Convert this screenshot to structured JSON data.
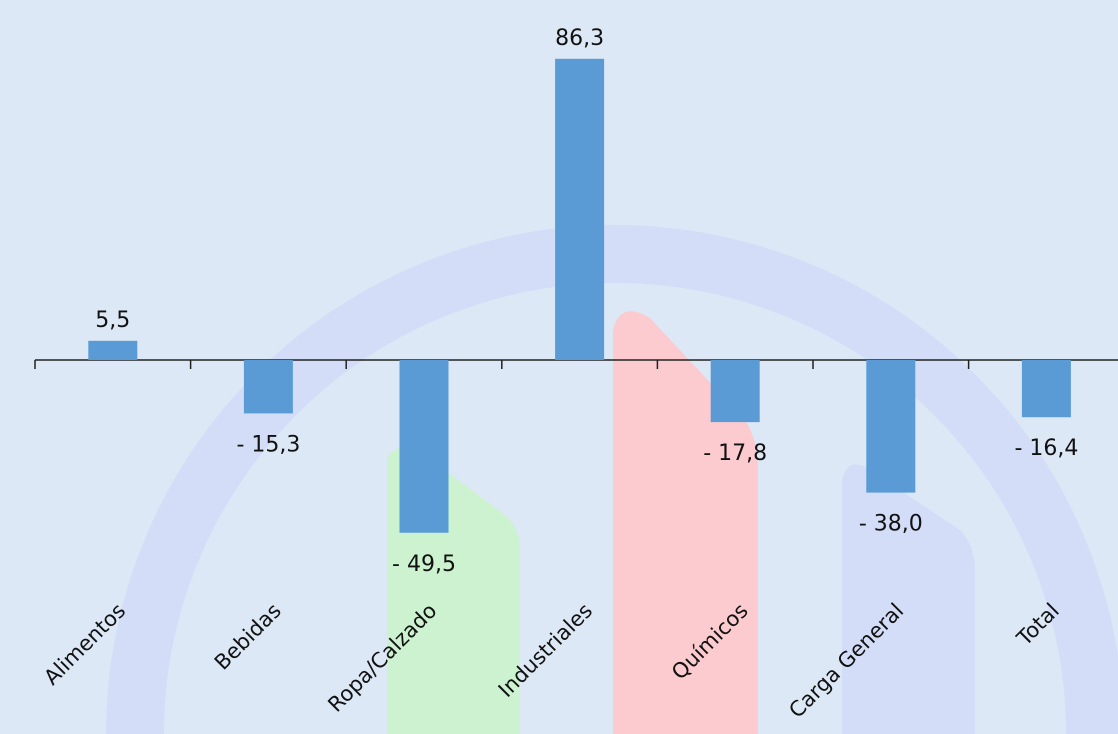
{
  "chart_data": {
    "type": "bar",
    "categories": [
      "Alimentos",
      "Bebidas",
      "Ropa/Calzado",
      "Industriales",
      "Químicos",
      "Carga General",
      "Total"
    ],
    "values": [
      5.5,
      -15.3,
      -49.5,
      86.3,
      -17.8,
      -38.0,
      -16.4
    ],
    "value_labels": [
      "5,5",
      "- 15,3",
      "- 49,5",
      "86,3",
      "- 17,8",
      "- 38,0",
      "- 16,4"
    ],
    "title": "",
    "xlabel": "",
    "ylabel": "",
    "grid": false,
    "legend": "none",
    "bar_color": "#5b9bd5"
  }
}
